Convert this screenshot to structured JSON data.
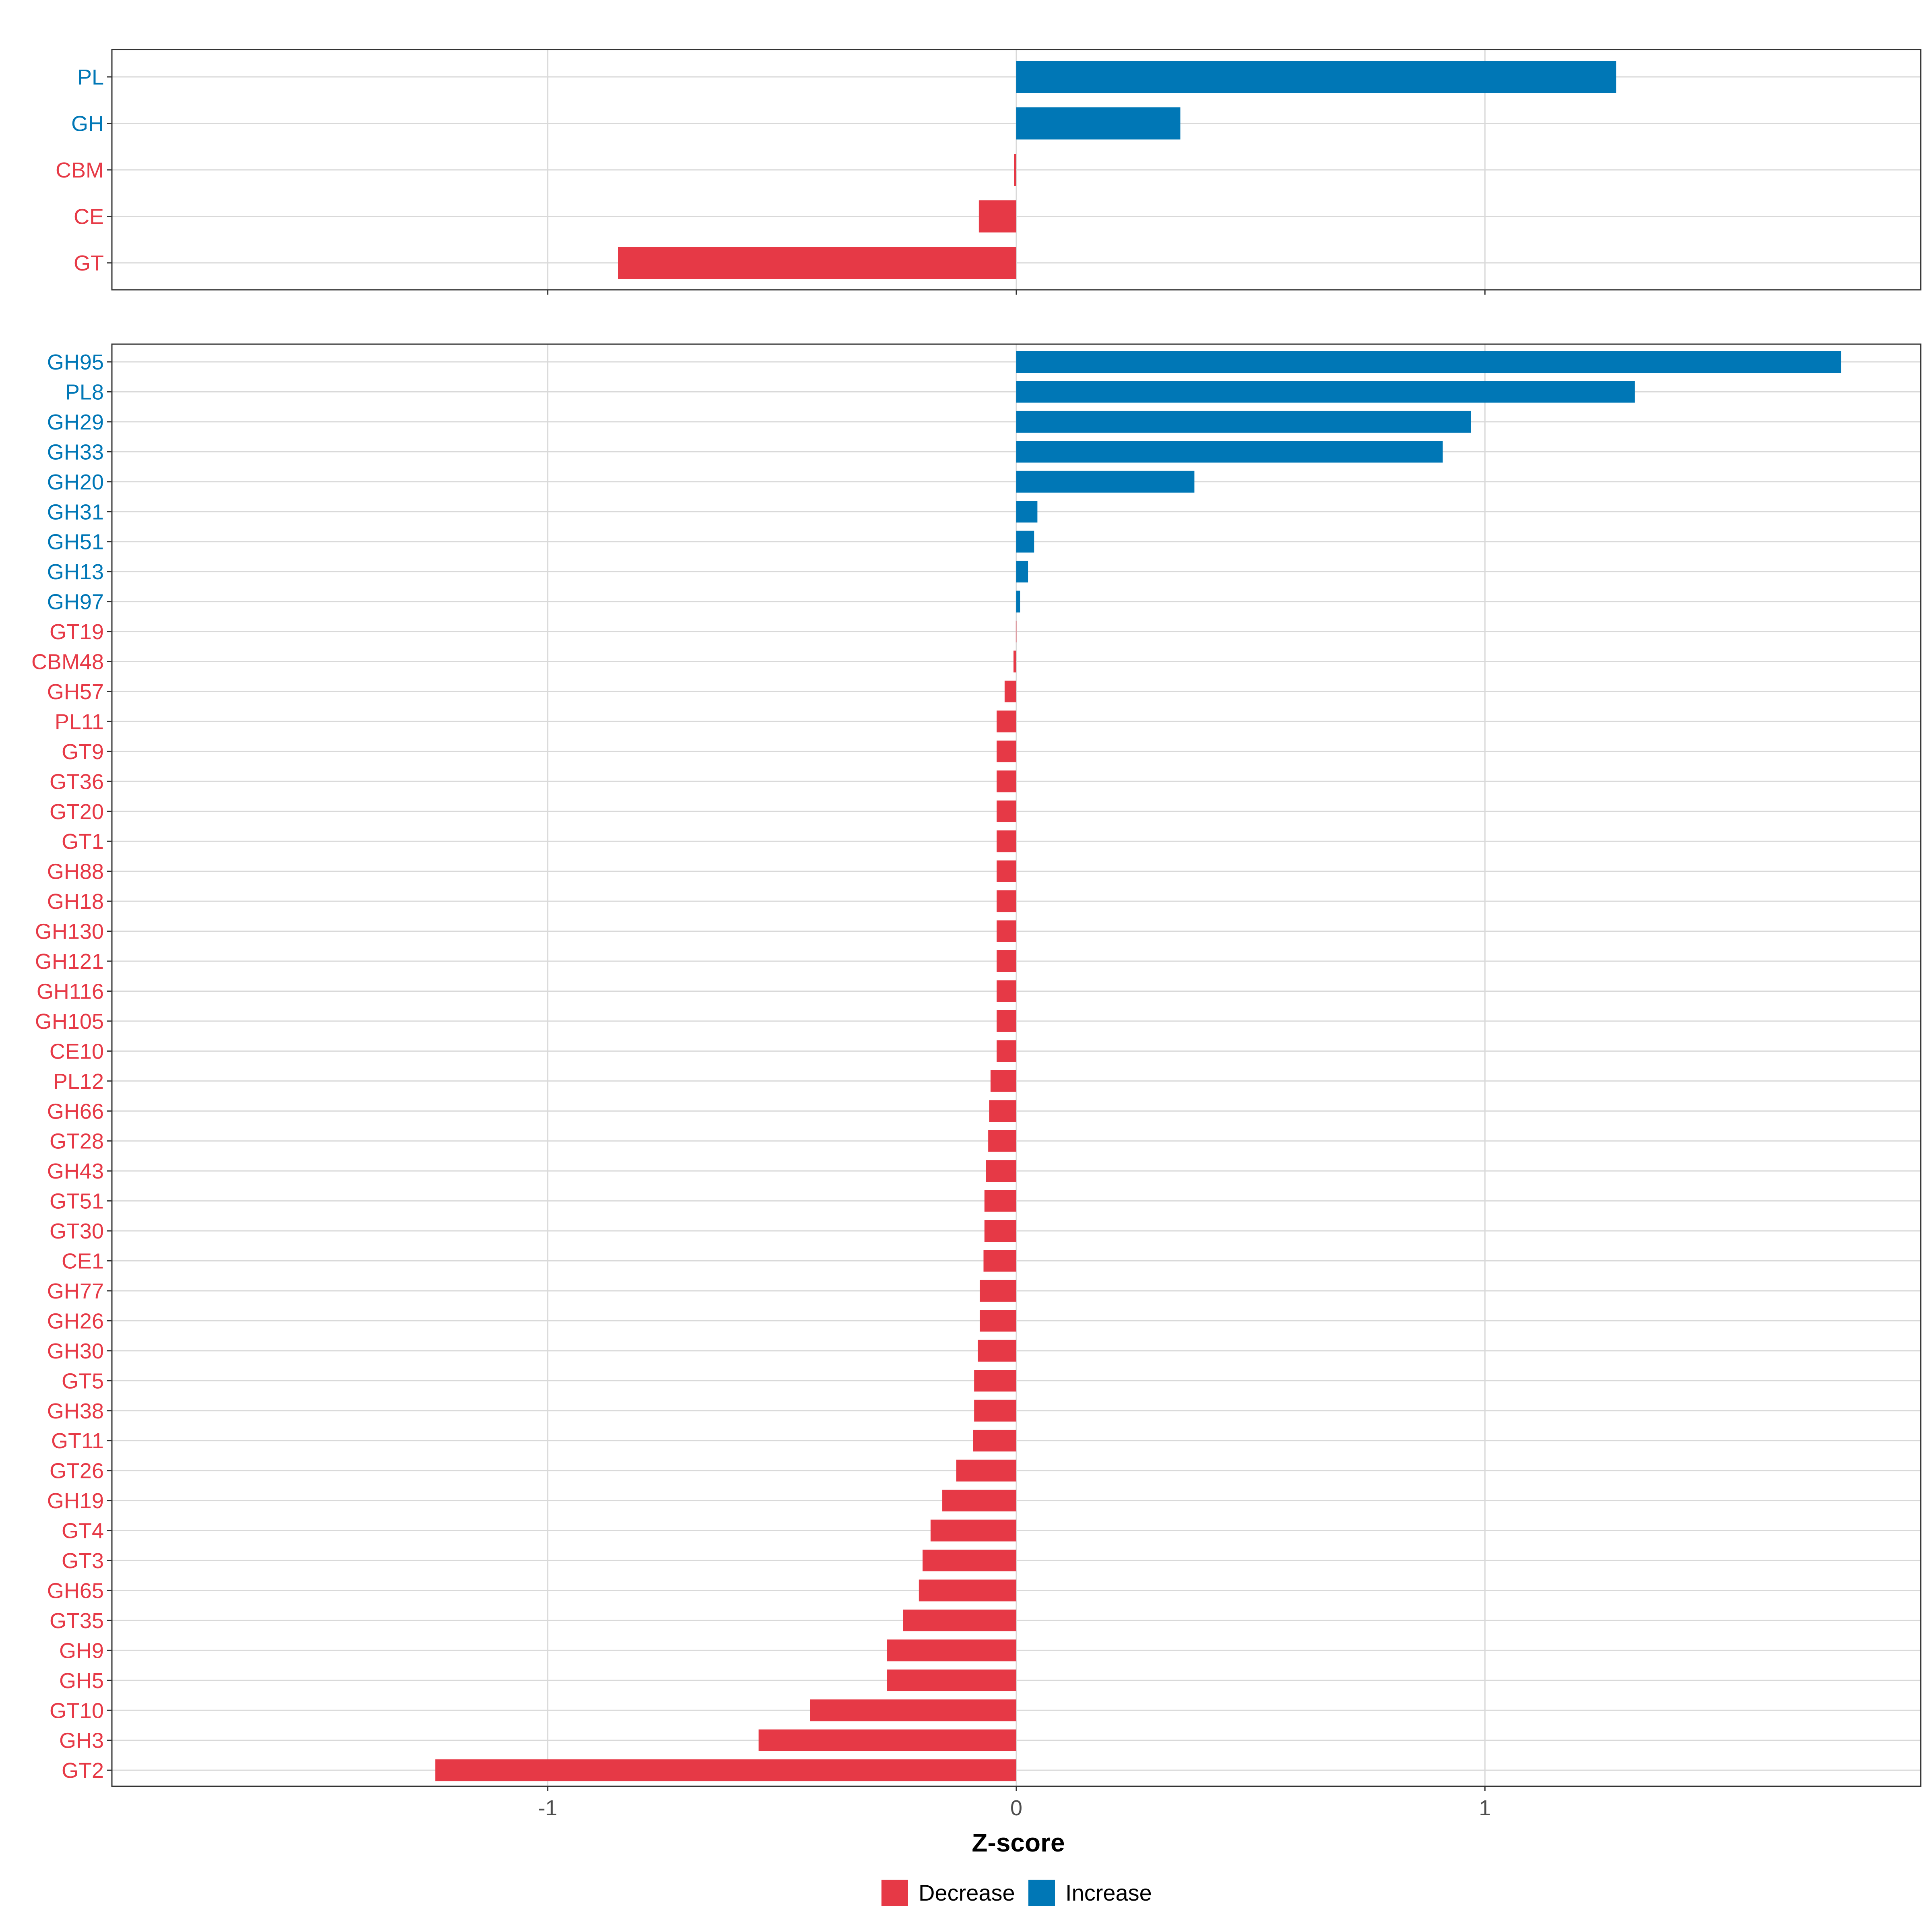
{
  "chart_data": [
    {
      "type": "bar",
      "orientation": "horizontal",
      "panel": "top",
      "title": "",
      "xlabel": "",
      "ylabel": "",
      "xlim": [
        -1.93,
        1.93
      ],
      "grid": true,
      "categories": [
        "PL",
        "GH",
        "CBM",
        "CE",
        "GT"
      ],
      "values": [
        1.28,
        0.35,
        -0.005,
        -0.08,
        -0.85
      ]
    },
    {
      "type": "bar",
      "orientation": "horizontal",
      "panel": "bottom",
      "title": "",
      "xlabel": "Z-score",
      "ylabel": "",
      "xlim": [
        -1.93,
        1.93
      ],
      "xticks": [
        -1,
        0,
        1
      ],
      "xtick_labels": [
        "-1",
        "0",
        "1"
      ],
      "grid": true,
      "categories": [
        "GH95",
        "PL8",
        "GH29",
        "GH33",
        "GH20",
        "GH31",
        "GH51",
        "GH13",
        "GH97",
        "GT19",
        "CBM48",
        "GH57",
        "PL11",
        "GT9",
        "GT36",
        "GT20",
        "GT1",
        "GH88",
        "GH18",
        "GH130",
        "GH121",
        "GH116",
        "GH105",
        "CE10",
        "PL12",
        "GH66",
        "GT28",
        "GH43",
        "GT51",
        "GT30",
        "CE1",
        "GH77",
        "GH26",
        "GH30",
        "GT5",
        "GH38",
        "GT11",
        "GT26",
        "GH19",
        "GT4",
        "GT3",
        "GH65",
        "GT35",
        "GH9",
        "GH5",
        "GT10",
        "GH3",
        "GT2"
      ],
      "values": [
        1.76,
        1.32,
        0.97,
        0.91,
        0.38,
        0.045,
        0.038,
        0.025,
        0.008,
        -0.001,
        -0.006,
        -0.025,
        -0.042,
        -0.042,
        -0.042,
        -0.042,
        -0.042,
        -0.042,
        -0.042,
        -0.042,
        -0.042,
        -0.042,
        -0.042,
        -0.042,
        -0.055,
        -0.058,
        -0.06,
        -0.065,
        -0.068,
        -0.068,
        -0.07,
        -0.078,
        -0.078,
        -0.082,
        -0.09,
        -0.09,
        -0.092,
        -0.128,
        -0.158,
        -0.183,
        -0.2,
        -0.208,
        -0.242,
        -0.276,
        -0.276,
        -0.44,
        -0.55,
        -1.24
      ]
    }
  ],
  "legend": {
    "position": "bottom",
    "items": [
      {
        "label": "Decrease",
        "color": "#E63946"
      },
      {
        "label": "Increase",
        "color": "#0077B6"
      }
    ]
  },
  "colors": {
    "decrease": "#E63946",
    "increase": "#0077B6",
    "grid": "#D9D9D9",
    "frame": "#333333",
    "tick_text": "#4D4D4D"
  }
}
